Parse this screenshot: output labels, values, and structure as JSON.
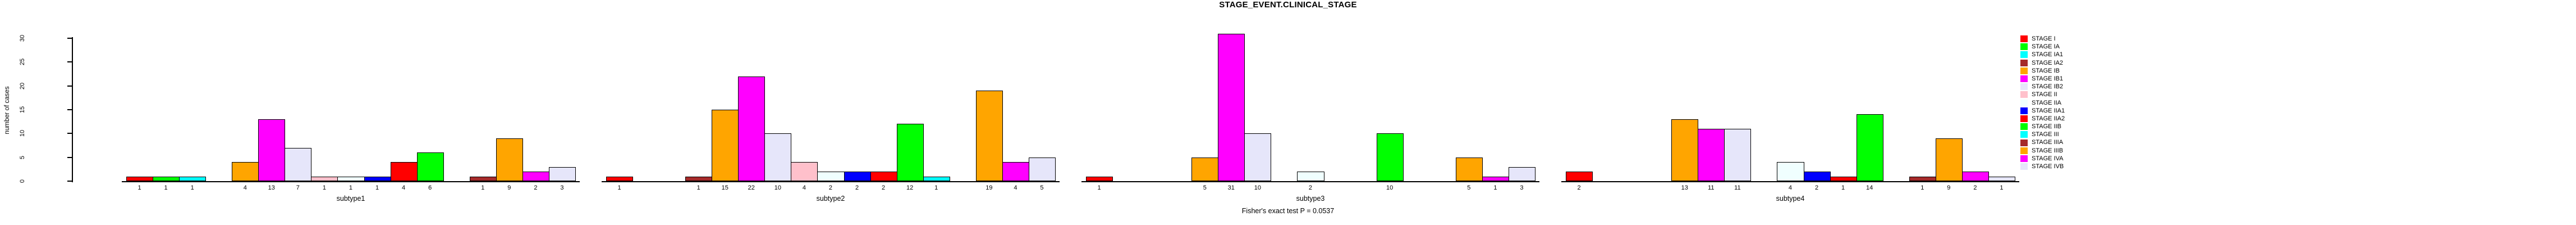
{
  "chart_data": {
    "type": "bar",
    "title": "STAGE_EVENT.CLINICAL_STAGE",
    "footer": "Fisher's exact test P = 0.0537",
    "ylabel": "number of cases",
    "yticks": [
      0,
      5,
      10,
      15,
      20,
      25,
      30
    ],
    "ylim": [
      0,
      30
    ],
    "grid": false,
    "legend_position": "right",
    "bar_label_rule": "count printed below each non-zero bar; zero-count slots left empty",
    "categories": [
      "STAGE I",
      "STAGE IA",
      "STAGE IA1",
      "STAGE IA2",
      "STAGE IB",
      "STAGE IB1",
      "STAGE IB2",
      "STAGE II",
      "STAGE IIA",
      "STAGE IIA1",
      "STAGE IIA2",
      "STAGE IIB",
      "STAGE III",
      "STAGE IIIA",
      "STAGE IIIB",
      "STAGE IVA",
      "STAGE IVB"
    ],
    "colors": [
      "#FF0000",
      "#00FF00",
      "#00FFFF",
      "#A52A2A",
      "#FFA500",
      "#FF00FF",
      "#E6E6FA",
      "#FFC0CB",
      "#F0FFFF",
      "#0000FF",
      "#FF0000",
      "#00FF00",
      "#00FFFF",
      "#A52A2A",
      "#FFA500",
      "#FF00FF",
      "#E6E6FA"
    ],
    "series": [
      {
        "name": "subtype1",
        "values": [
          1,
          1,
          1,
          0,
          4,
          13,
          7,
          1,
          1,
          1,
          4,
          6,
          0,
          1,
          9,
          2,
          3
        ]
      },
      {
        "name": "subtype2",
        "values": [
          1,
          0,
          0,
          1,
          15,
          22,
          10,
          4,
          2,
          2,
          2,
          12,
          1,
          0,
          19,
          4,
          5
        ]
      },
      {
        "name": "subtype3",
        "values": [
          1,
          0,
          0,
          0,
          5,
          31,
          10,
          0,
          2,
          0,
          0,
          10,
          0,
          0,
          5,
          1,
          3
        ]
      },
      {
        "name": "subtype4",
        "values": [
          2,
          0,
          0,
          0,
          13,
          11,
          11,
          0,
          4,
          2,
          1,
          14,
          0,
          1,
          9,
          2,
          1
        ]
      }
    ],
    "axis_color": "#000000",
    "background_color": "#FFFFFF"
  }
}
